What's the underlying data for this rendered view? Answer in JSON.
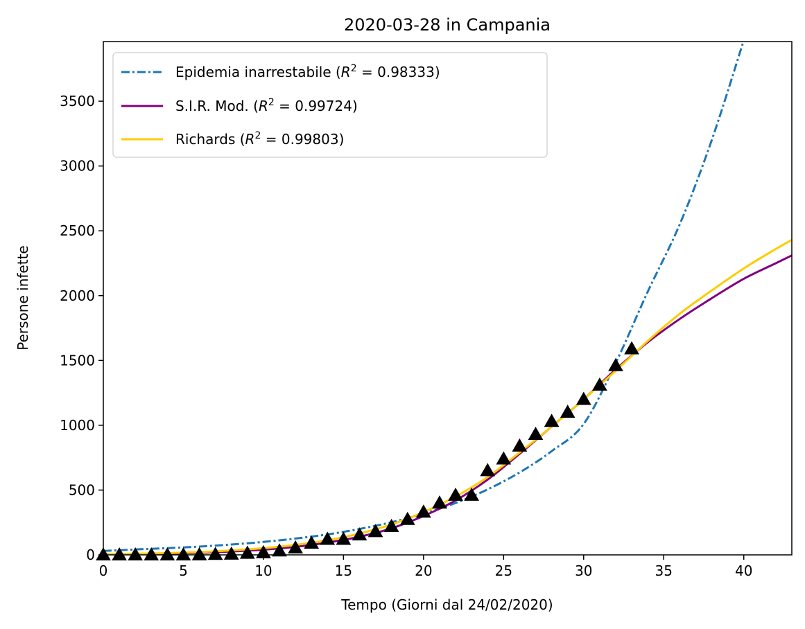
{
  "chart_data": {
    "type": "line",
    "title": "2020-03-28 in Campania",
    "xlabel": "Tempo (Giorni dal 24/02/2020)",
    "ylabel": "Persone infette",
    "xlim": [
      0,
      43
    ],
    "ylim": [
      0,
      3960
    ],
    "xticks": [
      0,
      5,
      10,
      15,
      20,
      25,
      30,
      35,
      40
    ],
    "yticks": [
      0,
      500,
      1000,
      1500,
      2000,
      2500,
      3000,
      3500
    ],
    "legend_position": "top-left",
    "series": [
      {
        "key": "exponential",
        "name": "Epidemia inarrestabile",
        "r2": "0.98333",
        "color": "#1f77b4",
        "style": "dashdot",
        "x": [
          0,
          2,
          4,
          6,
          8,
          10,
          12,
          14,
          16,
          18,
          20,
          22,
          24,
          26,
          28,
          30,
          32,
          34,
          36,
          38,
          40
        ],
        "y": [
          30,
          42,
          52,
          64,
          80,
          100,
          126,
          158,
          200,
          252,
          318,
          400,
          505,
          636,
          800,
          1010,
          1480,
          2030,
          2550,
          3200,
          3970
        ]
      },
      {
        "key": "sir",
        "name": "S.I.R. Mod.",
        "r2": "0.99724",
        "color": "#800080",
        "style": "solid",
        "x": [
          0,
          2,
          4,
          6,
          8,
          10,
          12,
          14,
          16,
          18,
          20,
          22,
          24,
          26,
          28,
          30,
          32,
          34,
          36,
          38,
          40,
          42,
          43
        ],
        "y": [
          2,
          5,
          9,
          16,
          26,
          40,
          62,
          95,
          140,
          205,
          300,
          420,
          580,
          780,
          990,
          1200,
          1430,
          1640,
          1820,
          1980,
          2130,
          2250,
          2310
        ]
      },
      {
        "key": "richards",
        "name": "Richards",
        "r2": "0.99803",
        "color": "#ffcc00",
        "style": "solid",
        "x": [
          0,
          2,
          4,
          6,
          8,
          10,
          12,
          14,
          16,
          18,
          20,
          22,
          24,
          26,
          28,
          30,
          32,
          34,
          36,
          38,
          40,
          42,
          43
        ],
        "y": [
          5,
          9,
          14,
          22,
          35,
          52,
          77,
          113,
          165,
          235,
          330,
          450,
          600,
          790,
          990,
          1200,
          1420,
          1650,
          1860,
          2040,
          2210,
          2360,
          2430
        ]
      }
    ],
    "observed": {
      "marker": "triangle",
      "color": "#000000",
      "x": [
        0,
        1,
        2,
        3,
        4,
        5,
        6,
        7,
        8,
        9,
        10,
        11,
        12,
        13,
        14,
        15,
        16,
        17,
        18,
        19,
        20,
        21,
        22,
        23,
        24,
        25,
        26,
        27,
        28,
        29,
        30,
        31,
        32,
        33
      ],
      "y": [
        0,
        0,
        0,
        0,
        0,
        0,
        1,
        4,
        6,
        13,
        17,
        31,
        54,
        90,
        120,
        120,
        154,
        180,
        220,
        274,
        330,
        400,
        460,
        460,
        650,
        740,
        840,
        930,
        1030,
        1100,
        1200,
        1310,
        1460,
        1590
      ]
    }
  }
}
